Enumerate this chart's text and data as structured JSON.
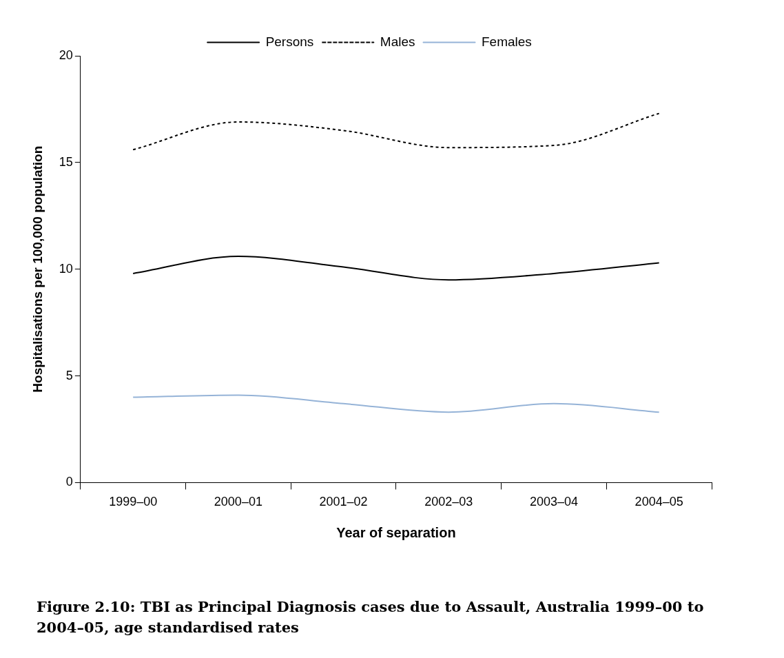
{
  "chart_data": {
    "type": "line",
    "xlabel": "Year of separation",
    "ylabel": "Hospitalisations per 100,000 population",
    "categories": [
      "1999–00",
      "2000–01",
      "2001–02",
      "2002–03",
      "2003–04",
      "2004–05"
    ],
    "series": [
      {
        "name": "Persons",
        "color": "#000000",
        "line_style": "solid",
        "values": [
          9.8,
          10.6,
          10.1,
          9.5,
          9.8,
          10.3
        ]
      },
      {
        "name": "Males",
        "color": "#000000",
        "line_style": "dotted",
        "values": [
          15.6,
          16.9,
          16.5,
          15.7,
          15.8,
          17.3
        ]
      },
      {
        "name": "Females",
        "color": "#95b3d7",
        "line_style": "solid",
        "values": [
          4.0,
          4.1,
          3.7,
          3.3,
          3.7,
          3.3
        ]
      }
    ],
    "ylim": [
      0,
      20
    ],
    "yticks": [
      0,
      5,
      10,
      15,
      20
    ],
    "grid": false,
    "legend": "top",
    "marker": "none",
    "annotations": [
      "Figure 2.10: TBI as Principal Diagnosis cases due to Assault, Australia 1999–00 to 2004–05, age standardised rates"
    ]
  }
}
